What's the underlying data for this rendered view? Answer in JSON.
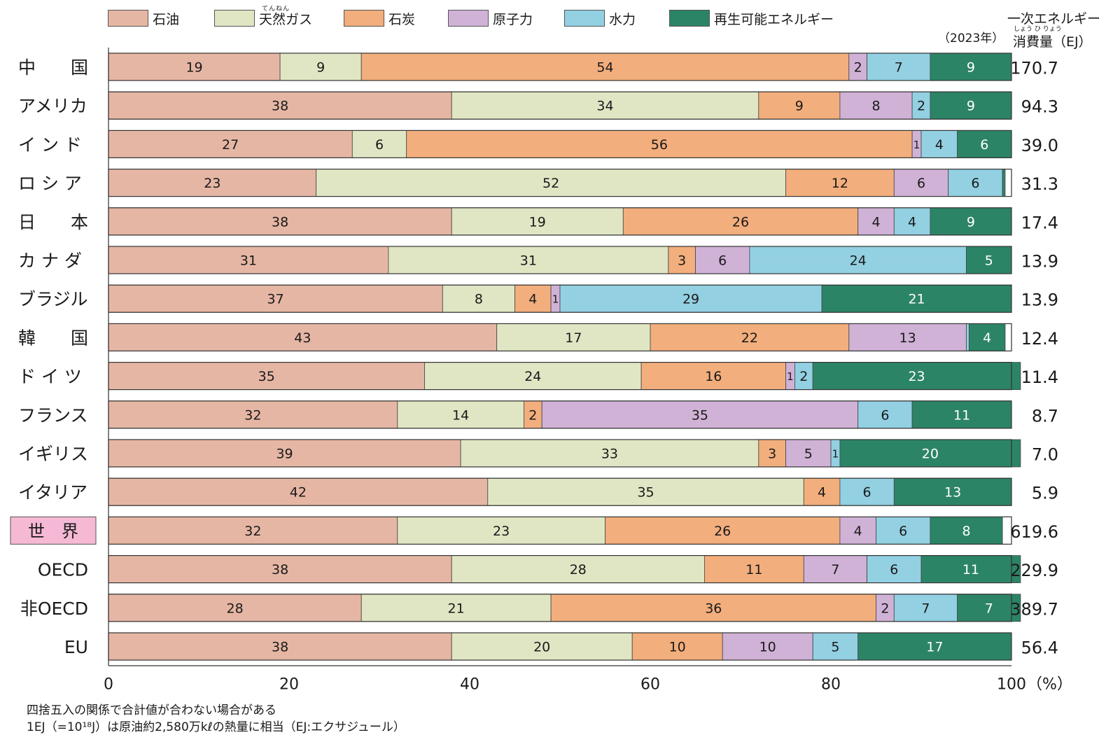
{
  "chart_data": {
    "type": "bar",
    "orientation": "horizontal",
    "stacked": true,
    "year": "（2023年）",
    "total_header": {
      "line1": "一次エネルギー",
      "line2": "消費量（EJ）",
      "ruby_shouhiryou": "しょう ひ りょう",
      "ruby_tennen": "てんねん"
    },
    "legend": [
      {
        "name": "石油",
        "color": "#E6B6A4"
      },
      {
        "name": "天然ガス",
        "color": "#E0E6C4"
      },
      {
        "name": "石炭",
        "color": "#F2AE7C"
      },
      {
        "name": "原子力",
        "color": "#D0B2D6"
      },
      {
        "name": "水力",
        "color": "#92D0E2"
      },
      {
        "name": "再生可能エネルギー",
        "color": "#2C8467"
      }
    ],
    "categories": [
      {
        "label": "中　　国",
        "values": [
          19,
          9,
          54,
          2,
          7,
          9
        ],
        "total": "170.7"
      },
      {
        "label": "アメリカ",
        "values": [
          38,
          34,
          9,
          8,
          2,
          9
        ],
        "total": "94.3"
      },
      {
        "label": "イ ン ド",
        "values": [
          27,
          6,
          56,
          1,
          4,
          6
        ],
        "total": "39.0"
      },
      {
        "label": "ロ シ ア",
        "values": [
          23,
          52,
          12,
          6,
          6,
          0.3
        ],
        "total": "31.3"
      },
      {
        "label": "日　　本",
        "values": [
          38,
          19,
          26,
          4,
          4,
          9
        ],
        "total": "17.4"
      },
      {
        "label": "カ ナ ダ",
        "values": [
          31,
          31,
          3,
          6,
          24,
          5
        ],
        "total": "13.9"
      },
      {
        "label": "ブラジル",
        "values": [
          37,
          8,
          4,
          1,
          29,
          21
        ],
        "total": "13.9"
      },
      {
        "label": "韓　　国",
        "values": [
          43,
          17,
          22,
          13,
          0.3,
          4
        ],
        "total": "12.4"
      },
      {
        "label": "ド イ ツ",
        "values": [
          35,
          24,
          16,
          1,
          2,
          23
        ],
        "total": "11.4"
      },
      {
        "label": "フランス",
        "values": [
          32,
          14,
          2,
          35,
          6,
          11
        ],
        "total": "8.7"
      },
      {
        "label": "イギリス",
        "values": [
          39,
          33,
          3,
          5,
          1,
          20
        ],
        "total": "7.0"
      },
      {
        "label": "イタリア",
        "values": [
          42,
          35,
          4,
          0,
          6,
          13
        ],
        "total": "5.9"
      },
      {
        "label": "世　界",
        "values": [
          32,
          23,
          26,
          4,
          6,
          8
        ],
        "total": "619.6",
        "highlight": true,
        "highlight_color": "#F5B9D5"
      },
      {
        "label": "OECD",
        "values": [
          38,
          28,
          11,
          7,
          6,
          11
        ],
        "total": "229.9"
      },
      {
        "label": "非OECD",
        "values": [
          28,
          21,
          36,
          2,
          7,
          7
        ],
        "total": "389.7"
      },
      {
        "label": "EU",
        "values": [
          38,
          20,
          10,
          10,
          5,
          17
        ],
        "total": "56.4"
      }
    ],
    "x_ticks": [
      "0",
      "20",
      "40",
      "60",
      "80",
      "100"
    ],
    "x_unit": "（%）",
    "xlim": [
      0,
      100
    ],
    "notes": [
      "四捨五入の関係で合計値が合わない場合がある",
      "1EJ（=10¹⁸J）は原油約2,580万kℓの熱量に相当（EJ:エクサジュール）"
    ]
  }
}
